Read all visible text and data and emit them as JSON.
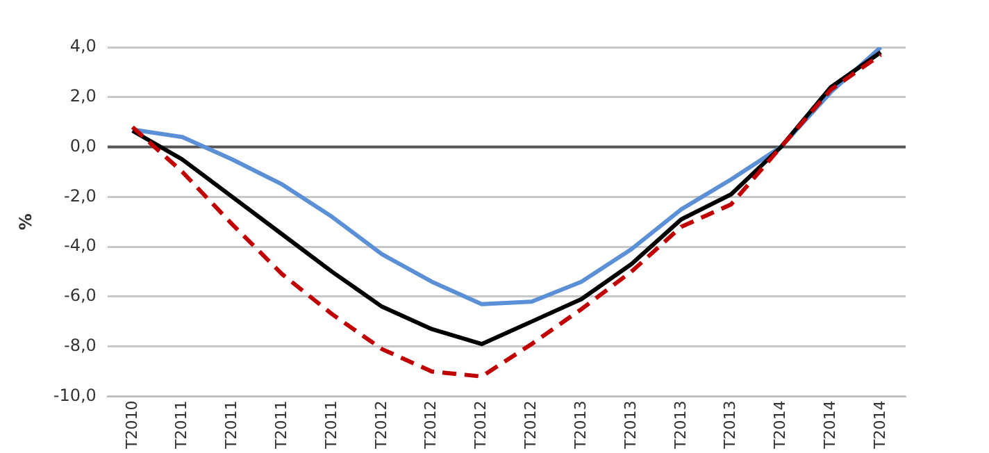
{
  "chart_data": {
    "type": "line",
    "ylabel": "%",
    "categories": [
      "T2010",
      "T2011",
      "T2011",
      "T2011",
      "T2011",
      "T2012",
      "T2012",
      "T2012",
      "T2012",
      "T2013",
      "T2013",
      "T2013",
      "T2013",
      "T2014",
      "T2014",
      "T2014"
    ],
    "series": [
      {
        "color": "#5b8fd6",
        "line_style": "solid",
        "values": [
          0.7,
          0.4,
          -0.5,
          -1.5,
          -2.8,
          -4.3,
          -5.4,
          -6.3,
          -6.2,
          -5.4,
          -4.1,
          -2.5,
          -1.3,
          0.0,
          2.2,
          4.0
        ]
      },
      {
        "color": "#000000",
        "line_style": "solid",
        "values": [
          0.65,
          -0.5,
          -2.0,
          -3.5,
          -5.0,
          -6.4,
          -7.3,
          -7.9,
          -7.0,
          -6.1,
          -4.7,
          -2.9,
          -1.9,
          0.0,
          2.4,
          3.8
        ]
      },
      {
        "color": "#c00000",
        "line_style": "dashed",
        "values": [
          0.8,
          -1.0,
          -3.1,
          -5.1,
          -6.7,
          -8.1,
          -9.0,
          -9.2,
          -7.9,
          -6.5,
          -5.0,
          -3.2,
          -2.3,
          0.0,
          2.3,
          3.7
        ]
      }
    ],
    "ylim": [
      -10,
      4
    ],
    "yticks": [
      {
        "value": -10,
        "label": "-10,0"
      },
      {
        "value": -8,
        "label": "-8,0"
      },
      {
        "value": -6,
        "label": "-6,0"
      },
      {
        "value": -4,
        "label": "-4,0"
      },
      {
        "value": -2,
        "label": "-2,0"
      },
      {
        "value": 0,
        "label": "0,0"
      },
      {
        "value": 2,
        "label": "2,0"
      },
      {
        "value": 4,
        "label": "4,0"
      }
    ],
    "ref_lines": [
      {
        "axis": "y",
        "value": 0,
        "color": "#555555"
      }
    ],
    "grid": "y",
    "legend": false,
    "marker": "none"
  }
}
